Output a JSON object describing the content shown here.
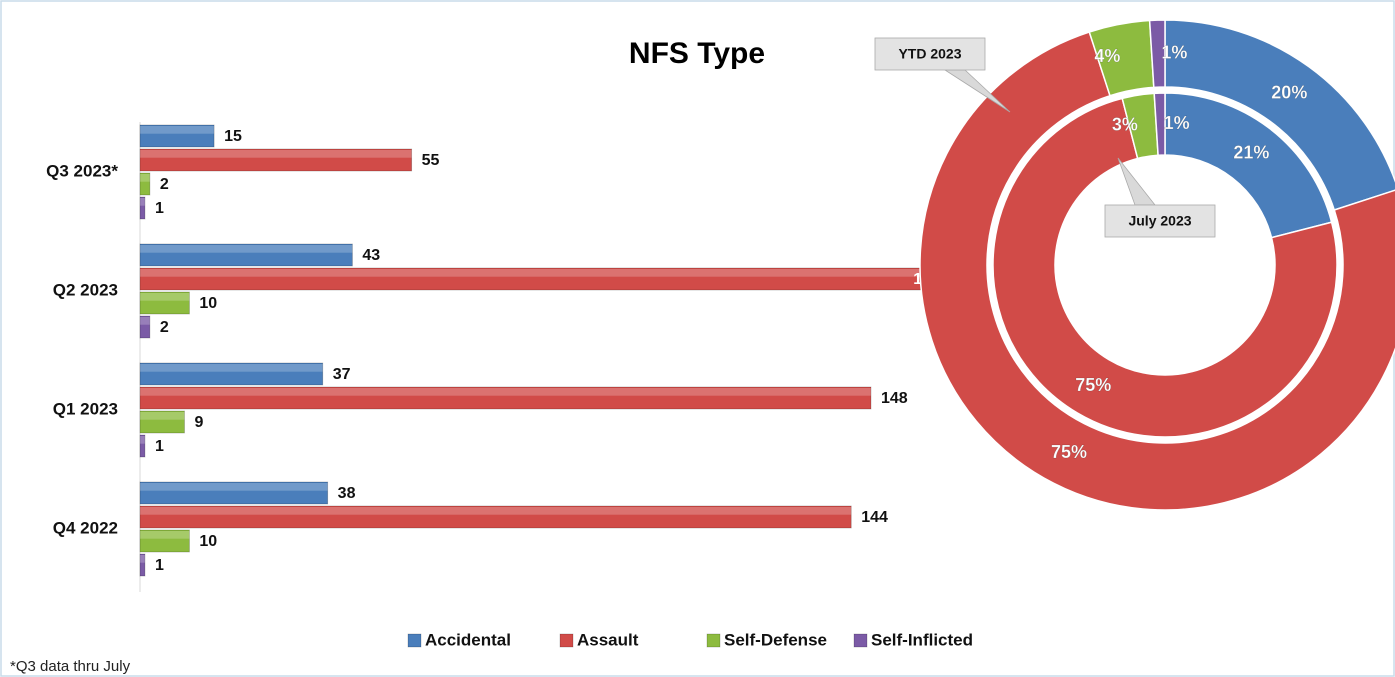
{
  "chart_data": [
    {
      "type": "bar",
      "title": "NFS Type",
      "footnote": "*Q3 data thru July",
      "categories": [
        "Q3 2023*",
        "Q2 2023",
        "Q1 2023",
        "Q4 2022"
      ],
      "series": [
        {
          "name": "Accidental",
          "color": "#4a7ebb",
          "values": [
            15,
            43,
            37,
            38
          ]
        },
        {
          "name": "Assault",
          "color": "#d14b48",
          "values": [
            55,
            164,
            148,
            144
          ]
        },
        {
          "name": "Self-Defense",
          "color": "#8dbb3f",
          "values": [
            2,
            10,
            9,
            10
          ]
        },
        {
          "name": "Self-Inflicted",
          "color": "#7b5ba6",
          "values": [
            1,
            2,
            1,
            1
          ]
        }
      ]
    },
    {
      "type": "donut",
      "series": [
        {
          "name": "YTD 2023",
          "values": [
            20,
            75,
            4,
            1
          ],
          "value_labels": [
            "20%",
            "75%",
            "4%",
            "1%"
          ]
        },
        {
          "name": "July 2023",
          "values": [
            21,
            75,
            3,
            1
          ],
          "value_labels": [
            "21%",
            "75%",
            "3%",
            "1%"
          ]
        }
      ]
    }
  ]
}
